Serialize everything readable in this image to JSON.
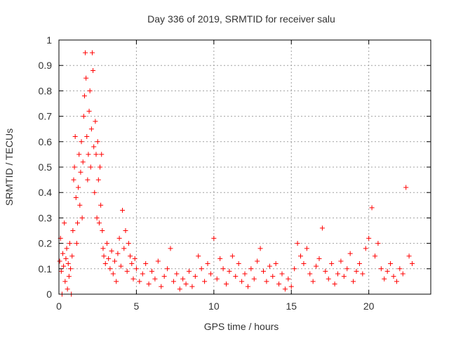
{
  "chart_data": {
    "type": "scatter",
    "title": "Day 336 of 2019, SRMTID for receiver salu",
    "xlabel": "GPS time / hours",
    "ylabel": "SRMTID / TECUs",
    "xlim": [
      0,
      24
    ],
    "ylim": [
      0,
      1
    ],
    "xticks": [
      0,
      5,
      10,
      15,
      20
    ],
    "yticks": [
      0,
      0.1,
      0.2,
      0.3,
      0.4,
      0.5,
      0.6,
      0.7,
      0.8,
      0.9,
      1
    ],
    "ytick_labels": [
      "0",
      "0.1",
      "0.2",
      "0.3",
      "0.4",
      "0.5",
      "0.6",
      "0.7",
      "0.8",
      "0.9",
      "1"
    ],
    "grid": true,
    "marker": "+",
    "color": "#ff0000",
    "series": [
      {
        "name": "SRMTID",
        "points": [
          [
            0.05,
            0.13
          ],
          [
            0.1,
            0.22
          ],
          [
            0.15,
            0.09
          ],
          [
            0.2,
            0.0
          ],
          [
            0.25,
            0.16
          ],
          [
            0.3,
            0.11
          ],
          [
            0.35,
            0.28
          ],
          [
            0.4,
            0.05
          ],
          [
            0.45,
            0.14
          ],
          [
            0.5,
            0.18
          ],
          [
            0.55,
            0.02
          ],
          [
            0.6,
            0.12
          ],
          [
            0.65,
            0.07
          ],
          [
            0.7,
            0.2
          ],
          [
            0.75,
            0.1
          ],
          [
            0.8,
            0.0
          ],
          [
            0.85,
            0.15
          ],
          [
            0.9,
            0.25
          ],
          [
            0.95,
            0.45
          ],
          [
            1.0,
            0.5
          ],
          [
            1.05,
            0.62
          ],
          [
            1.1,
            0.38
          ],
          [
            1.15,
            0.2
          ],
          [
            1.2,
            0.28
          ],
          [
            1.25,
            0.42
          ],
          [
            1.3,
            0.55
          ],
          [
            1.35,
            0.35
          ],
          [
            1.4,
            0.48
          ],
          [
            1.45,
            0.6
          ],
          [
            1.5,
            0.3
          ],
          [
            1.55,
            0.52
          ],
          [
            1.6,
            0.7
          ],
          [
            1.65,
            0.78
          ],
          [
            1.7,
            0.95
          ],
          [
            1.75,
            0.85
          ],
          [
            1.8,
            0.62
          ],
          [
            1.85,
            0.45
          ],
          [
            1.9,
            0.55
          ],
          [
            1.95,
            0.72
          ],
          [
            2.0,
            0.8
          ],
          [
            2.05,
            0.5
          ],
          [
            2.1,
            0.65
          ],
          [
            2.15,
            0.95
          ],
          [
            2.2,
            0.88
          ],
          [
            2.25,
            0.58
          ],
          [
            2.3,
            0.4
          ],
          [
            2.35,
            0.68
          ],
          [
            2.4,
            0.55
          ],
          [
            2.45,
            0.3
          ],
          [
            2.5,
            0.6
          ],
          [
            2.55,
            0.45
          ],
          [
            2.6,
            0.28
          ],
          [
            2.65,
            0.5
          ],
          [
            2.7,
            0.35
          ],
          [
            2.75,
            0.55
          ],
          [
            2.8,
            0.25
          ],
          [
            2.85,
            0.18
          ],
          [
            2.9,
            0.15
          ],
          [
            3.0,
            0.12
          ],
          [
            3.1,
            0.2
          ],
          [
            3.2,
            0.14
          ],
          [
            3.3,
            0.1
          ],
          [
            3.4,
            0.17
          ],
          [
            3.5,
            0.08
          ],
          [
            3.6,
            0.13
          ],
          [
            3.7,
            0.05
          ],
          [
            3.8,
            0.16
          ],
          [
            3.9,
            0.22
          ],
          [
            4.0,
            0.11
          ],
          [
            4.1,
            0.33
          ],
          [
            4.2,
            0.18
          ],
          [
            4.3,
            0.25
          ],
          [
            4.4,
            0.09
          ],
          [
            4.5,
            0.2
          ],
          [
            4.6,
            0.15
          ],
          [
            4.7,
            0.12
          ],
          [
            4.8,
            0.06
          ],
          [
            4.9,
            0.14
          ],
          [
            5.0,
            0.1
          ],
          [
            5.2,
            0.05
          ],
          [
            5.4,
            0.08
          ],
          [
            5.6,
            0.12
          ],
          [
            5.8,
            0.04
          ],
          [
            6.0,
            0.09
          ],
          [
            6.2,
            0.06
          ],
          [
            6.4,
            0.13
          ],
          [
            6.6,
            0.03
          ],
          [
            6.8,
            0.07
          ],
          [
            7.0,
            0.1
          ],
          [
            7.2,
            0.18
          ],
          [
            7.4,
            0.05
          ],
          [
            7.6,
            0.08
          ],
          [
            7.8,
            0.02
          ],
          [
            8.0,
            0.06
          ],
          [
            8.2,
            0.04
          ],
          [
            8.4,
            0.09
          ],
          [
            8.6,
            0.03
          ],
          [
            8.8,
            0.07
          ],
          [
            9.0,
            0.15
          ],
          [
            9.2,
            0.1
          ],
          [
            9.4,
            0.05
          ],
          [
            9.6,
            0.12
          ],
          [
            9.8,
            0.08
          ],
          [
            10.0,
            0.22
          ],
          [
            10.2,
            0.06
          ],
          [
            10.4,
            0.14
          ],
          [
            10.6,
            0.1
          ],
          [
            10.8,
            0.04
          ],
          [
            11.0,
            0.09
          ],
          [
            11.2,
            0.15
          ],
          [
            11.4,
            0.07
          ],
          [
            11.6,
            0.12
          ],
          [
            11.8,
            0.05
          ],
          [
            12.0,
            0.08
          ],
          [
            12.2,
            0.03
          ],
          [
            12.4,
            0.1
          ],
          [
            12.6,
            0.06
          ],
          [
            12.8,
            0.13
          ],
          [
            13.0,
            0.18
          ],
          [
            13.2,
            0.09
          ],
          [
            13.4,
            0.05
          ],
          [
            13.6,
            0.11
          ],
          [
            13.8,
            0.07
          ],
          [
            14.0,
            0.12
          ],
          [
            14.2,
            0.04
          ],
          [
            14.4,
            0.08
          ],
          [
            14.6,
            0.02
          ],
          [
            14.8,
            0.06
          ],
          [
            15.0,
            0.03
          ],
          [
            15.2,
            0.1
          ],
          [
            15.4,
            0.2
          ],
          [
            15.6,
            0.15
          ],
          [
            15.8,
            0.12
          ],
          [
            16.0,
            0.18
          ],
          [
            16.2,
            0.08
          ],
          [
            16.4,
            0.05
          ],
          [
            16.6,
            0.11
          ],
          [
            16.8,
            0.14
          ],
          [
            17.0,
            0.26
          ],
          [
            17.2,
            0.09
          ],
          [
            17.4,
            0.06
          ],
          [
            17.6,
            0.12
          ],
          [
            17.8,
            0.04
          ],
          [
            18.0,
            0.08
          ],
          [
            18.2,
            0.13
          ],
          [
            18.4,
            0.07
          ],
          [
            18.6,
            0.1
          ],
          [
            18.8,
            0.16
          ],
          [
            19.0,
            0.05
          ],
          [
            19.2,
            0.09
          ],
          [
            19.4,
            0.12
          ],
          [
            19.6,
            0.08
          ],
          [
            19.8,
            0.18
          ],
          [
            20.0,
            0.22
          ],
          [
            20.2,
            0.34
          ],
          [
            20.4,
            0.15
          ],
          [
            20.6,
            0.2
          ],
          [
            20.8,
            0.1
          ],
          [
            21.0,
            0.06
          ],
          [
            21.2,
            0.09
          ],
          [
            21.4,
            0.12
          ],
          [
            21.6,
            0.07
          ],
          [
            21.8,
            0.05
          ],
          [
            22.0,
            0.1
          ],
          [
            22.2,
            0.08
          ],
          [
            22.4,
            0.42
          ],
          [
            22.6,
            0.15
          ],
          [
            22.8,
            0.12
          ]
        ]
      }
    ]
  }
}
